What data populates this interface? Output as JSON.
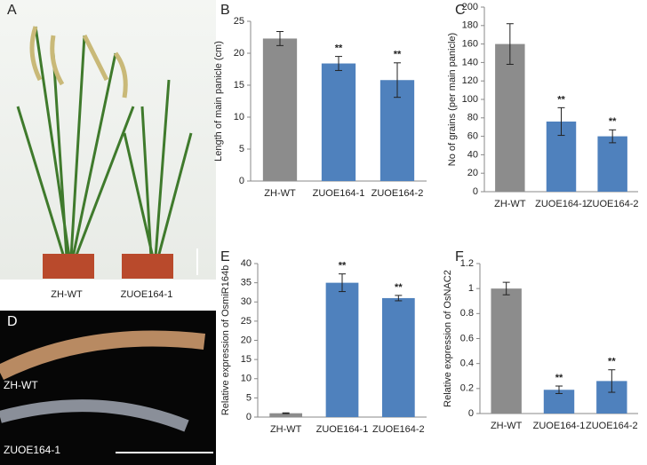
{
  "panels": {
    "a": {
      "label": "A",
      "left": "ZH-WT",
      "right": "ZUOE164-1"
    },
    "d": {
      "label": "D",
      "top": "ZH-WT",
      "bottom": "ZUOE164-1"
    }
  },
  "chart_data": [
    {
      "type": "bar",
      "panel_label": "B",
      "y_label": "Length of main panicle (cm)",
      "categories": [
        "ZH-WT",
        "ZUOE164-1",
        "ZUOE164-2"
      ],
      "values": [
        22.3,
        18.4,
        15.8
      ],
      "errors": [
        1.1,
        1.1,
        2.7
      ],
      "significance": [
        null,
        "**",
        "**"
      ],
      "colors": [
        "#8c8c8c",
        "#4f81bd",
        "#4f81bd"
      ],
      "ylim": [
        0,
        25
      ],
      "yticks": [
        0,
        5,
        10,
        15,
        20,
        25
      ]
    },
    {
      "type": "bar",
      "panel_label": "C",
      "y_label": "No of grains (per main panicle)",
      "categories": [
        "ZH-WT",
        "ZUOE164-1",
        "ZUOE164-2"
      ],
      "values": [
        160,
        76,
        60
      ],
      "errors": [
        22,
        15,
        7
      ],
      "significance": [
        null,
        "**",
        "**"
      ],
      "colors": [
        "#8c8c8c",
        "#4f81bd",
        "#4f81bd"
      ],
      "ylim": [
        0,
        200
      ],
      "yticks": [
        0,
        20,
        40,
        60,
        80,
        100,
        120,
        140,
        160,
        180,
        200
      ]
    },
    {
      "type": "bar",
      "panel_label": "E",
      "y_label": "Relative expression of OsmiR164b",
      "categories": [
        "ZH-WT",
        "ZUOE164-1",
        "ZUOE164-2"
      ],
      "values": [
        1,
        35,
        31
      ],
      "errors": [
        0.1,
        2.3,
        0.7
      ],
      "significance": [
        null,
        "**",
        "**"
      ],
      "colors": [
        "#8c8c8c",
        "#4f81bd",
        "#4f81bd"
      ],
      "ylim": [
        0,
        40
      ],
      "yticks": [
        0,
        5,
        10,
        15,
        20,
        25,
        30,
        35,
        40
      ]
    },
    {
      "type": "bar",
      "panel_label": "F",
      "y_label": "Relative expression of OsNAC2",
      "categories": [
        "ZH-WT",
        "ZUOE164-1",
        "ZUOE164-2"
      ],
      "values": [
        1,
        0.19,
        0.26
      ],
      "errors": [
        0.05,
        0.03,
        0.09
      ],
      "significance": [
        null,
        "**",
        "**"
      ],
      "colors": [
        "#8c8c8c",
        "#4f81bd",
        "#4f81bd"
      ],
      "ylim": [
        0,
        1.2
      ],
      "yticks": [
        0,
        0.2,
        0.4,
        0.6,
        0.8,
        1,
        1.2
      ]
    }
  ]
}
